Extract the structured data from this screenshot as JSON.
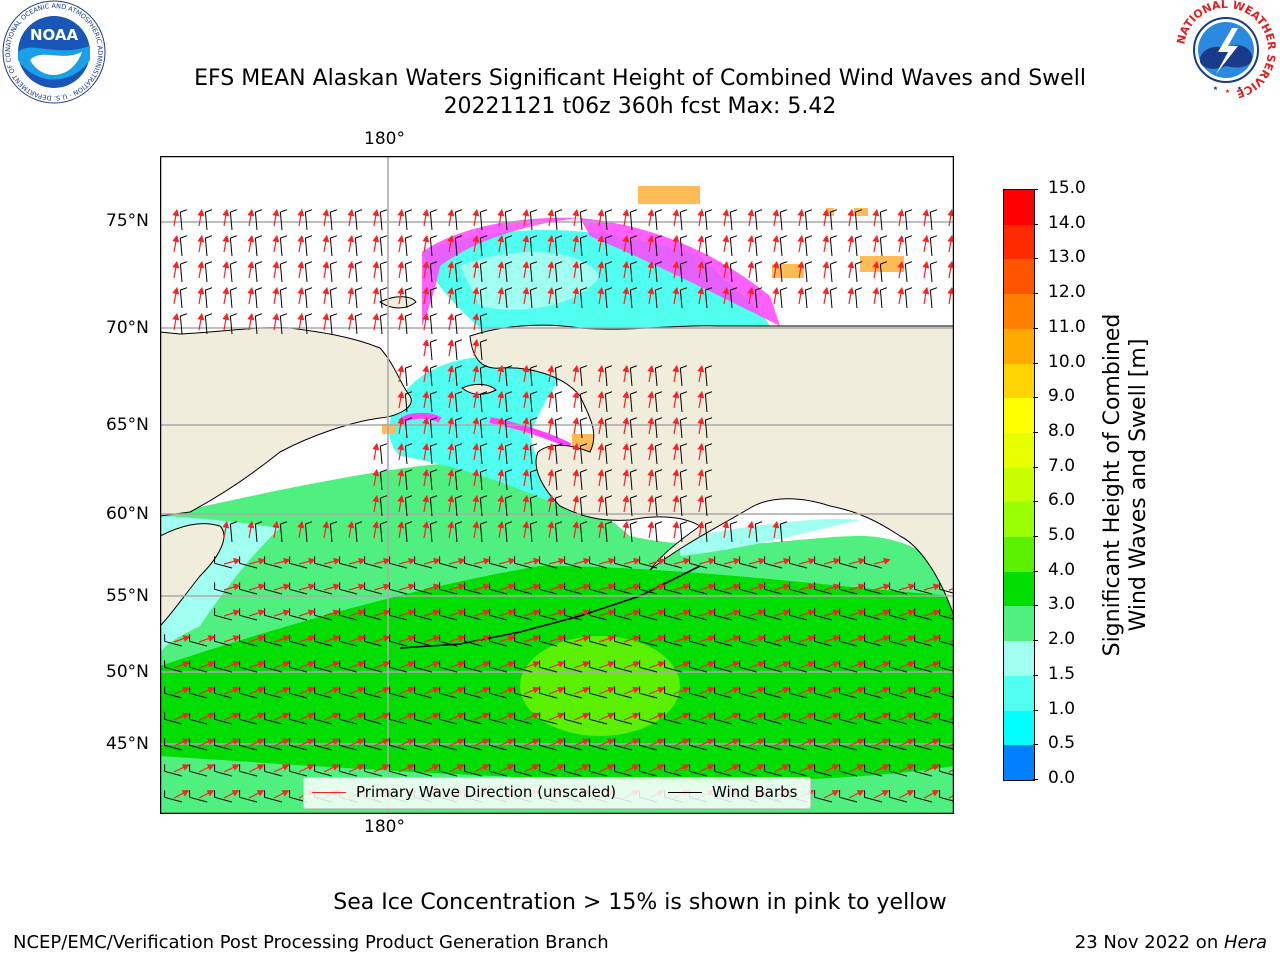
{
  "header": {
    "title_line1": "EFS MEAN Alaskan Waters Significant Height of Combined Wind Waves and Swell",
    "title_line2": "20221121 t06z 360h fcst   Max: 5.42"
  },
  "logos": {
    "noaa_text": "NOAA",
    "noaa_ring_text": "NATIONAL OCEANIC AND ATMOSPHERIC ADMINISTRATION · U.S. DEPARTMENT OF COMMERCE",
    "nws_ring_text": "NATIONAL WEATHER SERVICE"
  },
  "map": {
    "lon_top_label": "180°",
    "lon_bottom_label": "180°",
    "lat_labels": [
      "75°N",
      "70°N",
      "65°N",
      "60°N",
      "55°N",
      "50°N",
      "45°N"
    ],
    "legend": {
      "wave_label": "Primary Wave Direction (unscaled)",
      "barb_label": "Wind Barbs",
      "wave_color": "#ff2020",
      "barb_color": "#000000"
    }
  },
  "colorbar": {
    "label_line1": "Significant Height of Combined",
    "label_line2": "Wind Waves and Swell [m]",
    "ticks": [
      "15.0",
      "14.0",
      "13.0",
      "12.0",
      "11.0",
      "10.0",
      "9.0",
      "8.0",
      "7.0",
      "6.0",
      "5.0",
      "4.0",
      "3.0",
      "2.0",
      "1.5",
      "1.0",
      "0.5",
      "0.0"
    ],
    "colors_top_to_bottom": [
      "#ff0000",
      "#ff2a00",
      "#ff5500",
      "#ff8000",
      "#ffaa00",
      "#ffd400",
      "#ffff00",
      "#e8ff00",
      "#c8ff00",
      "#9aff00",
      "#5af000",
      "#00dd00",
      "#50f080",
      "#a0fff0",
      "#50fff0",
      "#00ffff",
      "#0080ff",
      "#0000ff"
    ]
  },
  "footer": {
    "note": "Sea Ice Concentration > 15% is shown in pink to yellow",
    "left": "NCEP/EMC/Verification Post Processing Product Generation Branch",
    "right_prefix": "23 Nov 2022 on ",
    "right_machine": "Hera"
  }
}
